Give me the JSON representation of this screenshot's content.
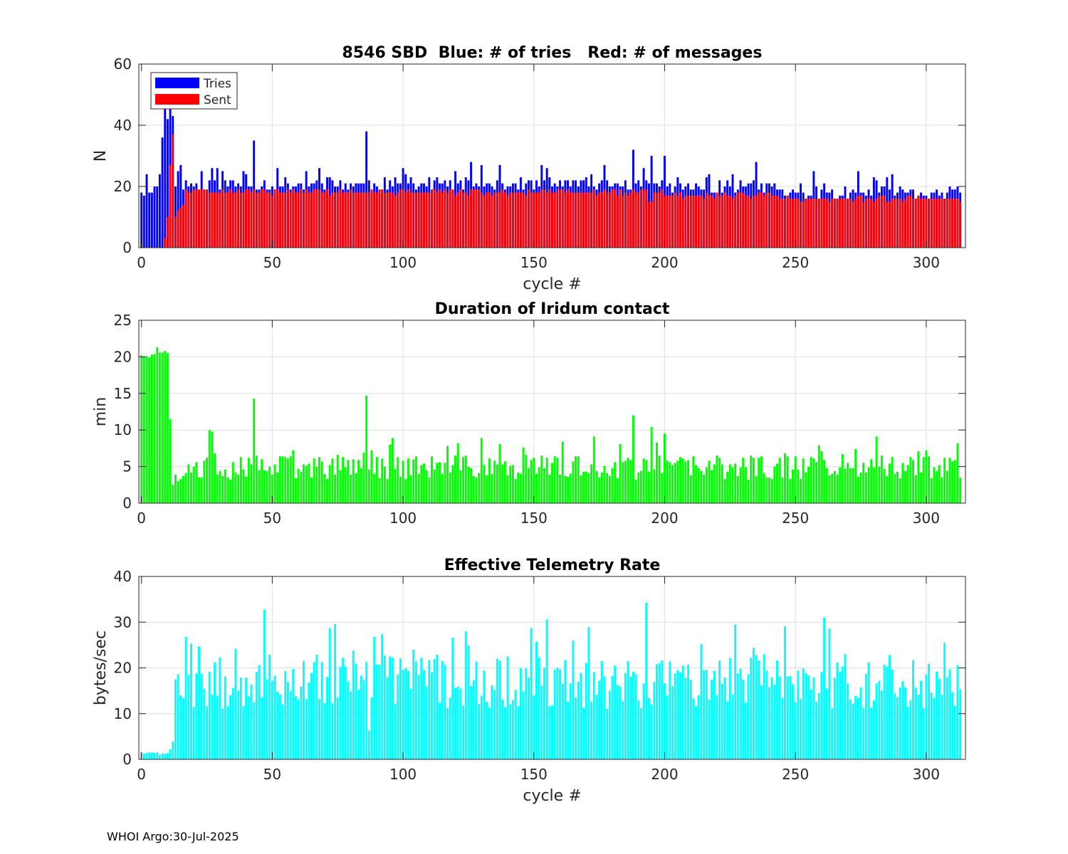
{
  "footer": "WHOI Argo:30-Jul-2025",
  "colors": {
    "tries": "#0000ff",
    "sent": "#ff0000",
    "duration": "#00ff00",
    "rate": "#00ffff",
    "grid": "#dfdfdf",
    "axis": "#262626"
  },
  "chart_data": [
    {
      "id": "sbd",
      "type": "bar",
      "title": "8546 SBD  Blue: # of tries   Red: # of messages",
      "xlabel": "cycle #",
      "ylabel": "N",
      "xlim": [
        -1,
        315
      ],
      "ylim": [
        0,
        60
      ],
      "xticks": [
        0,
        50,
        100,
        150,
        200,
        250,
        300
      ],
      "yticks": [
        0,
        20,
        40,
        60
      ],
      "grid": true,
      "legend": {
        "location": "top-left",
        "entries": [
          "Tries",
          "Sent"
        ]
      },
      "x_range": [
        0,
        313
      ],
      "series": [
        {
          "name": "Tries",
          "color": "#0000ff",
          "values_overview": "cycles 0-12: 18,17,24,18,18,20,20,24,36,46,42,46,43; cycles 13-313: mostly 18-22 with peaks 35 (cycle 43), 38 (cycle 86), 28 (cycle 126), 27 (cycle 130), 32 (cycle 188), 30 (cycle 195), 30 (cycle 200), 28 (cycle 235); declining to ~16 at the end"
        },
        {
          "name": "Sent",
          "color": "#ff0000",
          "values_overview": "cycles 0-8: 0; cycle 9: 3; cycle 10: 10; cycle 11: 27; cycle 12: 37; cycles 13-16: 10-14; then ~18-19 through cycle 200, ~17 to cycle 240, ~16 to cycle 313"
        }
      ]
    },
    {
      "id": "duration",
      "type": "bar",
      "title": "Duration of Iridum contact",
      "xlabel": "",
      "ylabel": "min",
      "xlim": [
        -1,
        315
      ],
      "ylim": [
        0,
        25
      ],
      "xticks": [
        0,
        50,
        100,
        150,
        200,
        250,
        300
      ],
      "yticks": [
        0,
        5,
        10,
        15,
        20,
        25
      ],
      "grid": true,
      "x_range": [
        0,
        313
      ],
      "series": [
        {
          "name": "Duration",
          "color": "#00ff00",
          "values_overview": "cycles 0-10: 20.0-21.3; cycle 11: 11.5; cycles 12-313: mostly 3-7 min with peaks 10 (cycle 26), 14.3 (cycle 43), 14.7 (cycle 86), 12 (cycle 188), 10.4 (cycle 195), 9.5 (cycle 200)"
        }
      ]
    },
    {
      "id": "rate",
      "type": "bar",
      "title": "Effective Telemetry Rate",
      "xlabel": "cycle #",
      "ylabel": "bytes/sec",
      "xlim": [
        -1,
        315
      ],
      "ylim": [
        0,
        40
      ],
      "xticks": [
        0,
        50,
        100,
        150,
        200,
        250,
        300
      ],
      "yticks": [
        0,
        10,
        20,
        30,
        40
      ],
      "grid": true,
      "x_range": [
        0,
        313
      ],
      "series": [
        {
          "name": "Rate",
          "color": "#00ffff",
          "values_overview": "cycles 0-10: 1-1.6; cycles 11-12: 2.2-4; cycles 13-313: mostly 12-25 with peaks 32.7 (cycle 47), 30.6 (cycle 155), 34.3 (cycle 193), 31 (cycle 261)"
        }
      ]
    }
  ]
}
